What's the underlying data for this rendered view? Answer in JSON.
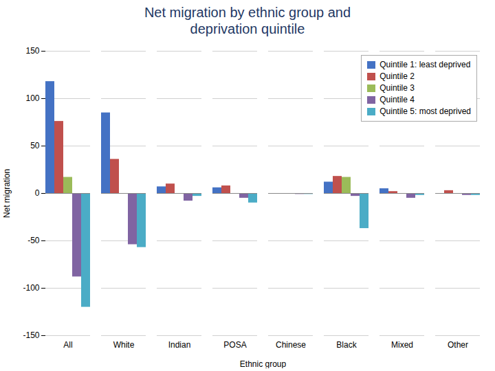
{
  "chart_data": {
    "type": "bar",
    "title": "Net migration by ethnic group and",
    "subtitle": "deprivation quintile",
    "x_label": "Ethnic group",
    "y_label": "Net migration",
    "categories": [
      "All",
      "White",
      "Indian",
      "POSA",
      "Chinese",
      "Black",
      "Mixed",
      "Other"
    ],
    "series": [
      {
        "name": "Quintile 1: least deprived",
        "color": "#4472c4",
        "values": [
          118,
          85,
          7,
          6,
          0,
          12,
          5,
          0
        ]
      },
      {
        "name": "Quintile 2",
        "color": "#c0504d",
        "values": [
          76,
          36,
          10,
          8,
          0,
          18,
          2,
          3
        ]
      },
      {
        "name": "Quintile 3",
        "color": "#9bbb59",
        "values": [
          17,
          0,
          0,
          0,
          0,
          17,
          0,
          0
        ]
      },
      {
        "name": "Quintile 4",
        "color": "#8064a2",
        "values": [
          -88,
          -54,
          -8,
          -5,
          -1,
          -3,
          -5,
          -2
        ]
      },
      {
        "name": "Quintile 5: most deprived",
        "color": "#4bacc6",
        "values": [
          -120,
          -57,
          -3,
          -10,
          -1,
          -37,
          -2,
          -2
        ]
      }
    ],
    "ylim": [
      -150,
      150
    ],
    "yticks": [
      -150,
      -100,
      -50,
      0,
      50,
      100,
      150
    ],
    "grid": true,
    "legend": "upper right"
  }
}
